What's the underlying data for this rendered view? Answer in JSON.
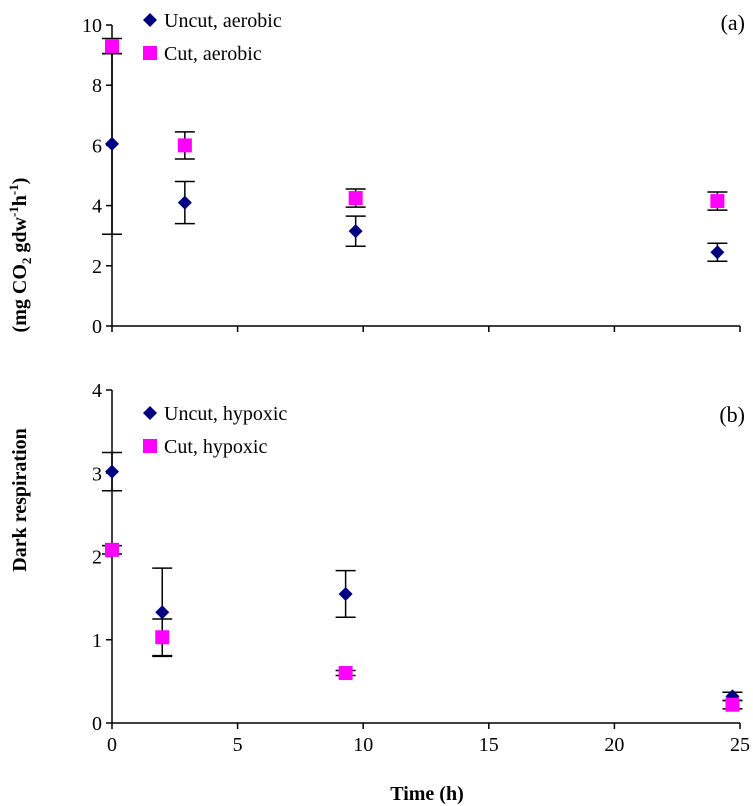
{
  "figure": {
    "ylabel_part1": "Dark respiration",
    "ylabel_part2_prefix": "(mg CO",
    "ylabel_part2_sub": "2",
    "ylabel_part2_mid": " gdw",
    "ylabel_part2_sup1": "-1",
    "ylabel_part2_h": "h",
    "ylabel_part2_sup2": "-1",
    "ylabel_part2_suffix": ")",
    "xlabel": "Time (h)"
  },
  "colors": {
    "uncut": "#000080",
    "cut": "#ff00ff",
    "axis": "#000000"
  },
  "chart_data": [
    {
      "type": "scatter",
      "panel_label": "(a)",
      "xlim": [
        0,
        25
      ],
      "ylim": [
        0,
        10
      ],
      "yticks": [
        0,
        2,
        4,
        6,
        8,
        10
      ],
      "xticks": [
        0,
        5,
        10,
        15,
        20,
        25
      ],
      "show_x_tick_labels": false,
      "grid": false,
      "legend": "top-left",
      "series": [
        {
          "name": "Uncut, aerobic",
          "marker": "diamond",
          "color": "#000080",
          "points": [
            {
              "x": 0,
              "y": 6.05,
              "err": 3.0
            },
            {
              "x": 2.9,
              "y": 4.1,
              "err": 0.7
            },
            {
              "x": 9.7,
              "y": 3.15,
              "err": 0.5
            },
            {
              "x": 24.1,
              "y": 2.45,
              "err": 0.3
            }
          ]
        },
        {
          "name": "Cut, aerobic",
          "marker": "square",
          "color": "#ff00ff",
          "points": [
            {
              "x": 0,
              "y": 9.3,
              "err": 0.25
            },
            {
              "x": 2.9,
              "y": 6.0,
              "err": 0.45
            },
            {
              "x": 9.7,
              "y": 4.25,
              "err": 0.3
            },
            {
              "x": 24.1,
              "y": 4.15,
              "err": 0.3
            }
          ]
        }
      ]
    },
    {
      "type": "scatter",
      "panel_label": "(b)",
      "xlim": [
        0,
        25
      ],
      "ylim": [
        0,
        4
      ],
      "yticks": [
        0,
        1,
        2,
        3,
        4
      ],
      "xticks": [
        0,
        5,
        10,
        15,
        20,
        25
      ],
      "show_x_tick_labels": true,
      "grid": false,
      "legend": "top-left",
      "series": [
        {
          "name": "Uncut, hypoxic",
          "marker": "diamond",
          "color": "#000080",
          "points": [
            {
              "x": 0,
              "y": 3.02,
              "err": 0.23
            },
            {
              "x": 2.0,
              "y": 1.33,
              "err": 0.53
            },
            {
              "x": 9.3,
              "y": 1.55,
              "err": 0.28
            },
            {
              "x": 24.7,
              "y": 0.32,
              "err": 0.05
            }
          ]
        },
        {
          "name": "Cut, hypoxic",
          "marker": "square",
          "color": "#ff00ff",
          "points": [
            {
              "x": 0,
              "y": 2.08,
              "err": 0.05
            },
            {
              "x": 2.0,
              "y": 1.03,
              "err": 0.22
            },
            {
              "x": 9.3,
              "y": 0.6,
              "err": 0.03
            },
            {
              "x": 24.7,
              "y": 0.22,
              "err": 0.05
            }
          ]
        }
      ]
    }
  ]
}
